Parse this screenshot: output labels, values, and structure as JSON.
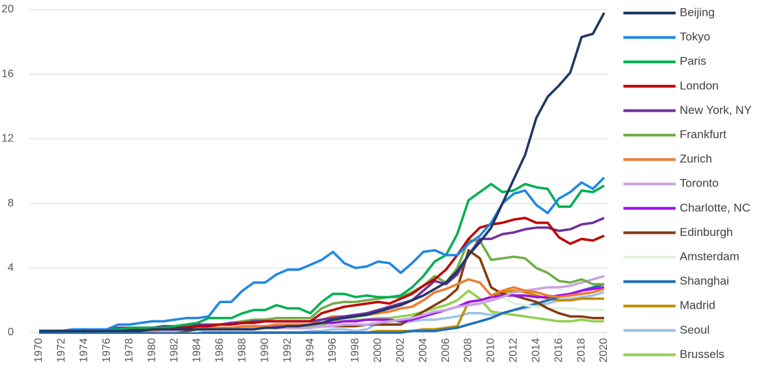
{
  "chart_data": {
    "type": "line",
    "grid": true,
    "legend": "right",
    "x": [
      1970,
      1971,
      1972,
      1973,
      1974,
      1975,
      1976,
      1977,
      1978,
      1979,
      1980,
      1981,
      1982,
      1983,
      1984,
      1985,
      1986,
      1987,
      1988,
      1989,
      1990,
      1991,
      1992,
      1993,
      1994,
      1995,
      1996,
      1997,
      1998,
      1999,
      2000,
      2001,
      2002,
      2003,
      2004,
      2005,
      2006,
      2007,
      2008,
      2009,
      2010,
      2011,
      2012,
      2013,
      2014,
      2015,
      2016,
      2017,
      2018,
      2019,
      2020
    ],
    "xlim": [
      1970,
      2020
    ],
    "xticks": [
      1970,
      1972,
      1974,
      1976,
      1978,
      1980,
      1982,
      1984,
      1986,
      1988,
      1990,
      1992,
      1994,
      1996,
      1998,
      2000,
      2002,
      2004,
      2006,
      2008,
      2010,
      2012,
      2014,
      2016,
      2018,
      2020
    ],
    "ylim": [
      0,
      20
    ],
    "yticks": [
      0,
      4,
      8,
      12,
      16,
      20
    ],
    "series": [
      {
        "name": "Beijing",
        "color": "#203864",
        "values": [
          0.1,
          0.1,
          0.1,
          0.1,
          0.1,
          0.1,
          0.1,
          0.1,
          0.1,
          0.1,
          0.2,
          0.2,
          0.2,
          0.2,
          0.2,
          0.2,
          0.2,
          0.2,
          0.2,
          0.2,
          0.3,
          0.3,
          0.4,
          0.4,
          0.5,
          0.6,
          0.8,
          0.9,
          1.0,
          1.1,
          1.3,
          1.5,
          1.7,
          2.0,
          2.3,
          2.7,
          3.1,
          3.8,
          4.8,
          5.6,
          6.5,
          8.0,
          9.5,
          11.0,
          13.3,
          14.6,
          15.3,
          16.1,
          18.3,
          18.5,
          19.8
        ]
      },
      {
        "name": "Tokyo",
        "color": "#1f87e5",
        "values": [
          0.1,
          0.1,
          0.1,
          0.2,
          0.2,
          0.2,
          0.2,
          0.5,
          0.5,
          0.6,
          0.7,
          0.7,
          0.8,
          0.9,
          0.9,
          1.0,
          1.9,
          1.9,
          2.6,
          3.1,
          3.1,
          3.6,
          3.9,
          3.9,
          4.2,
          4.5,
          5.0,
          4.3,
          4.0,
          4.1,
          4.4,
          4.3,
          3.7,
          4.3,
          5.0,
          5.1,
          4.8,
          4.8,
          5.5,
          6.0,
          6.8,
          8.0,
          8.6,
          8.8,
          7.9,
          7.4,
          8.3,
          8.7,
          9.3,
          8.9,
          9.6
        ]
      },
      {
        "name": "Paris",
        "color": "#00b050",
        "values": [
          0.1,
          0.1,
          0.1,
          0.1,
          0.1,
          0.2,
          0.2,
          0.2,
          0.3,
          0.3,
          0.3,
          0.3,
          0.4,
          0.5,
          0.6,
          0.9,
          0.9,
          0.9,
          1.2,
          1.4,
          1.4,
          1.7,
          1.5,
          1.5,
          1.2,
          1.9,
          2.4,
          2.4,
          2.2,
          2.3,
          2.2,
          2.2,
          2.3,
          2.8,
          3.5,
          4.4,
          4.8,
          6.1,
          8.2,
          8.7,
          9.2,
          8.7,
          8.8,
          9.2,
          9.0,
          8.9,
          7.8,
          7.8,
          8.8,
          8.7,
          9.1
        ]
      },
      {
        "name": "London",
        "color": "#c00000",
        "values": [
          0.1,
          0.1,
          0.1,
          0.1,
          0.1,
          0.1,
          0.2,
          0.2,
          0.2,
          0.2,
          0.3,
          0.3,
          0.3,
          0.3,
          0.4,
          0.4,
          0.5,
          0.5,
          0.6,
          0.6,
          0.7,
          0.7,
          0.7,
          0.7,
          0.7,
          1.2,
          1.4,
          1.6,
          1.7,
          1.8,
          1.9,
          1.8,
          2.1,
          2.4,
          2.9,
          3.3,
          3.9,
          4.8,
          5.8,
          6.5,
          6.7,
          6.8,
          7.0,
          7.1,
          6.8,
          6.8,
          5.9,
          5.5,
          5.8,
          5.7,
          6.0
        ]
      },
      {
        "name": "New York, NY",
        "color": "#7030a0",
        "values": [
          0.1,
          0.1,
          0.1,
          0.2,
          0.2,
          0.2,
          0.2,
          0.3,
          0.3,
          0.3,
          0.3,
          0.4,
          0.4,
          0.4,
          0.5,
          0.5,
          0.5,
          0.6,
          0.6,
          0.7,
          0.7,
          0.7,
          0.7,
          0.7,
          0.7,
          0.8,
          0.9,
          1.0,
          1.1,
          1.2,
          1.4,
          1.6,
          1.8,
          2.0,
          2.6,
          3.2,
          3.0,
          3.6,
          4.8,
          5.8,
          5.8,
          6.1,
          6.2,
          6.4,
          6.5,
          6.5,
          6.3,
          6.4,
          6.7,
          6.8,
          7.1
        ]
      },
      {
        "name": "Frankfurt",
        "color": "#70ad47",
        "values": [
          0.1,
          0.1,
          0.1,
          0.1,
          0.1,
          0.1,
          0.1,
          0.2,
          0.2,
          0.2,
          0.3,
          0.3,
          0.3,
          0.4,
          0.4,
          0.5,
          0.5,
          0.6,
          0.7,
          0.8,
          0.8,
          0.9,
          0.9,
          0.9,
          0.9,
          1.5,
          1.8,
          1.9,
          1.9,
          2.0,
          2.1,
          2.2,
          2.2,
          2.5,
          2.9,
          3.5,
          3.1,
          4.0,
          5.7,
          5.7,
          4.5,
          4.6,
          4.7,
          4.6,
          4.0,
          3.7,
          3.2,
          3.1,
          3.3,
          3.0,
          3.0
        ]
      },
      {
        "name": "Zurich",
        "color": "#ed7d31",
        "values": [
          0.1,
          0.1,
          0.1,
          0.1,
          0.1,
          0.1,
          0.1,
          0.1,
          0.1,
          0.1,
          0.1,
          0.2,
          0.2,
          0.2,
          0.3,
          0.3,
          0.3,
          0.3,
          0.4,
          0.4,
          0.4,
          0.5,
          0.5,
          0.5,
          0.5,
          0.8,
          1.0,
          1.0,
          1.1,
          1.1,
          1.2,
          1.3,
          1.5,
          1.6,
          2.0,
          2.5,
          2.7,
          3.0,
          3.3,
          3.1,
          2.3,
          2.6,
          2.8,
          2.6,
          2.5,
          2.3,
          2.2,
          2.3,
          2.4,
          2.5,
          2.7
        ]
      },
      {
        "name": "Toronto",
        "color": "#c9a3e0",
        "values": [
          0.1,
          0.1,
          0.1,
          0.1,
          0.1,
          0.1,
          0.1,
          0.1,
          0.1,
          0.1,
          0.1,
          0.1,
          0.1,
          0.2,
          0.2,
          0.2,
          0.2,
          0.3,
          0.3,
          0.3,
          0.3,
          0.3,
          0.3,
          0.3,
          0.3,
          0.4,
          0.4,
          0.5,
          0.5,
          0.5,
          0.6,
          0.7,
          0.8,
          0.9,
          1.1,
          1.3,
          1.4,
          1.6,
          1.7,
          1.8,
          2.0,
          2.2,
          2.5,
          2.6,
          2.7,
          2.8,
          2.8,
          2.9,
          3.1,
          3.3,
          3.5
        ]
      },
      {
        "name": "Charlotte, NC",
        "color": "#a010f0",
        "values": [
          0.1,
          0.1,
          0.1,
          0.1,
          0.1,
          0.1,
          0.1,
          0.1,
          0.1,
          0.1,
          0.1,
          0.1,
          0.2,
          0.2,
          0.2,
          0.2,
          0.3,
          0.3,
          0.3,
          0.4,
          0.4,
          0.4,
          0.5,
          0.5,
          0.5,
          0.6,
          0.6,
          0.7,
          0.7,
          0.8,
          0.8,
          0.8,
          0.7,
          0.8,
          1.0,
          1.2,
          1.4,
          1.6,
          1.9,
          2.0,
          2.2,
          2.3,
          2.3,
          2.3,
          2.2,
          2.2,
          2.3,
          2.4,
          2.6,
          2.7,
          2.8
        ]
      },
      {
        "name": "Edinburgh",
        "color": "#843c0c",
        "values": [
          0.1,
          0.1,
          0.1,
          0.1,
          0.1,
          0.1,
          0.1,
          0.1,
          0.1,
          0.1,
          0.1,
          0.1,
          0.1,
          0.1,
          0.2,
          0.2,
          0.2,
          0.2,
          0.2,
          0.3,
          0.3,
          0.3,
          0.3,
          0.3,
          0.3,
          0.4,
          0.4,
          0.4,
          0.4,
          0.5,
          0.5,
          0.5,
          0.5,
          0.9,
          1.3,
          1.7,
          2.1,
          2.7,
          5.1,
          4.6,
          2.8,
          2.4,
          2.3,
          2.1,
          1.9,
          1.5,
          1.2,
          1.0,
          1.0,
          0.9,
          0.9
        ]
      },
      {
        "name": "Amsterdam",
        "color": "#e2efda",
        "values": [
          0.1,
          0.1,
          0.1,
          0.1,
          0.1,
          0.1,
          0.1,
          0.1,
          0.1,
          0.1,
          0.1,
          0.1,
          0.1,
          0.1,
          0.1,
          0.2,
          0.2,
          0.2,
          0.2,
          0.2,
          0.2,
          0.2,
          0.2,
          0.2,
          0.3,
          0.3,
          0.4,
          0.4,
          0.5,
          0.5,
          0.6,
          0.6,
          0.7,
          0.8,
          1.0,
          1.2,
          1.4,
          1.6,
          1.9,
          2.0,
          2.0,
          2.2,
          1.8,
          1.7,
          1.6,
          1.5,
          1.5,
          1.5,
          1.4,
          1.4,
          1.4
        ]
      },
      {
        "name": "Shanghai",
        "color": "#1f6fb5",
        "values": [
          0,
          0,
          0,
          0,
          0,
          0,
          0,
          0,
          0,
          0,
          0,
          0,
          0,
          0,
          0,
          0,
          0,
          0,
          0,
          0,
          0,
          0,
          0,
          0,
          0,
          0,
          0,
          0,
          0,
          0,
          0,
          0,
          0,
          0.1,
          0.1,
          0.1,
          0.2,
          0.3,
          0.5,
          0.7,
          0.9,
          1.2,
          1.4,
          1.6,
          1.8,
          2.0,
          2.2,
          2.4,
          2.6,
          2.8,
          3.0
        ]
      },
      {
        "name": "Madrid",
        "color": "#bf8f00",
        "values": [
          0,
          0,
          0,
          0,
          0,
          0,
          0,
          0,
          0,
          0,
          0,
          0,
          0,
          0,
          0,
          0,
          0,
          0,
          0,
          0,
          0,
          0,
          0,
          0,
          0,
          0,
          0,
          0,
          0,
          0,
          0.1,
          0.1,
          0.1,
          0.1,
          0.2,
          0.2,
          0.3,
          0.4,
          1.9,
          2.0,
          2.2,
          2.5,
          2.6,
          2.5,
          2.3,
          2.1,
          2.0,
          2.0,
          2.1,
          2.1,
          2.1
        ]
      },
      {
        "name": "Seoul",
        "color": "#9dc3e6",
        "values": [
          0,
          0,
          0,
          0,
          0,
          0,
          0,
          0,
          0,
          0,
          0,
          0,
          0,
          0,
          0,
          0,
          0,
          0,
          0,
          0,
          0,
          0,
          0,
          0,
          0.1,
          0.1,
          0.2,
          0.2,
          0.1,
          0.2,
          0.6,
          0.6,
          0.6,
          0.7,
          0.8,
          0.8,
          0.9,
          1.0,
          1.2,
          1.2,
          1.1,
          1.2,
          1.4,
          1.5,
          1.7,
          1.8,
          2.0,
          2.1,
          2.2,
          2.3,
          2.5
        ]
      },
      {
        "name": "Brussels",
        "color": "#92d050",
        "values": [
          0.1,
          0.1,
          0.1,
          0.1,
          0.1,
          0.1,
          0.1,
          0.1,
          0.1,
          0.1,
          0.1,
          0.1,
          0.1,
          0.2,
          0.2,
          0.2,
          0.2,
          0.2,
          0.3,
          0.3,
          0.3,
          0.3,
          0.3,
          0.3,
          0.4,
          0.5,
          0.7,
          0.7,
          0.8,
          0.8,
          0.9,
          0.9,
          1.0,
          1.1,
          1.3,
          1.5,
          1.7,
          2.0,
          2.6,
          2.1,
          1.3,
          1.2,
          1.1,
          1.0,
          0.9,
          0.8,
          0.7,
          0.7,
          0.8,
          0.7,
          0.7
        ]
      }
    ]
  }
}
